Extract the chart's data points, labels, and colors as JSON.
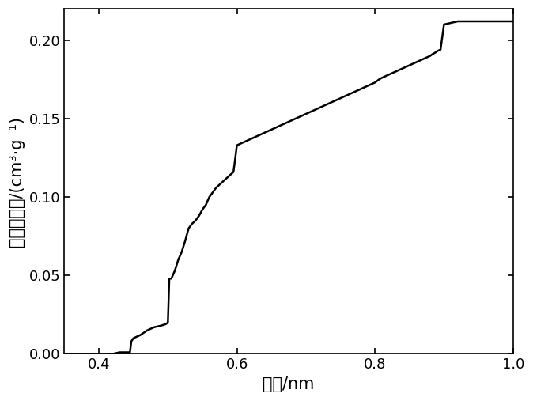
{
  "x": [
    0.35,
    0.4,
    0.41,
    0.42,
    0.43,
    0.44,
    0.445,
    0.447,
    0.45,
    0.46,
    0.47,
    0.48,
    0.49,
    0.497,
    0.5,
    0.502,
    0.505,
    0.51,
    0.515,
    0.52,
    0.525,
    0.53,
    0.535,
    0.54,
    0.545,
    0.55,
    0.555,
    0.56,
    0.565,
    0.57,
    0.575,
    0.58,
    0.585,
    0.59,
    0.595,
    0.6,
    0.605,
    0.61,
    0.615,
    0.62,
    0.625,
    0.63,
    0.635,
    0.64,
    0.645,
    0.65,
    0.655,
    0.66,
    0.665,
    0.67,
    0.675,
    0.68,
    0.685,
    0.69,
    0.695,
    0.7,
    0.705,
    0.71,
    0.715,
    0.72,
    0.725,
    0.73,
    0.735,
    0.74,
    0.745,
    0.75,
    0.755,
    0.76,
    0.765,
    0.77,
    0.775,
    0.78,
    0.785,
    0.79,
    0.795,
    0.8,
    0.803,
    0.806,
    0.81,
    0.815,
    0.82,
    0.825,
    0.83,
    0.835,
    0.84,
    0.845,
    0.85,
    0.855,
    0.86,
    0.865,
    0.87,
    0.875,
    0.88,
    0.883,
    0.887,
    0.89,
    0.895,
    0.9,
    0.92,
    1.0
  ],
  "y": [
    0.0,
    0.0,
    0.0,
    0.0,
    0.001,
    0.001,
    0.001,
    0.008,
    0.01,
    0.012,
    0.015,
    0.017,
    0.018,
    0.019,
    0.02,
    0.048,
    0.048,
    0.053,
    0.06,
    0.065,
    0.072,
    0.08,
    0.083,
    0.085,
    0.088,
    0.092,
    0.095,
    0.1,
    0.103,
    0.106,
    0.108,
    0.11,
    0.112,
    0.114,
    0.116,
    0.133,
    0.134,
    0.135,
    0.136,
    0.137,
    0.138,
    0.139,
    0.14,
    0.141,
    0.142,
    0.143,
    0.144,
    0.145,
    0.146,
    0.147,
    0.148,
    0.149,
    0.15,
    0.151,
    0.152,
    0.153,
    0.154,
    0.155,
    0.156,
    0.157,
    0.158,
    0.159,
    0.16,
    0.161,
    0.162,
    0.163,
    0.164,
    0.165,
    0.166,
    0.167,
    0.168,
    0.169,
    0.17,
    0.171,
    0.172,
    0.173,
    0.174,
    0.175,
    0.176,
    0.177,
    0.178,
    0.179,
    0.18,
    0.181,
    0.182,
    0.183,
    0.184,
    0.185,
    0.186,
    0.187,
    0.188,
    0.189,
    0.19,
    0.191,
    0.192,
    0.193,
    0.194,
    0.21,
    0.212,
    0.212
  ],
  "xlim": [
    0.35,
    1.0
  ],
  "ylim": [
    0.0,
    0.22
  ],
  "xticks": [
    0.4,
    0.6,
    0.8,
    1.0
  ],
  "yticks": [
    0.0,
    0.05,
    0.1,
    0.15,
    0.2
  ],
  "xlabel": "孔径/nm",
  "ylabel": "累积孔体积/(cm³·g⁻¹)",
  "line_color": "#000000",
  "line_width": 1.8,
  "background_color": "#ffffff",
  "tick_fontsize": 13,
  "label_fontsize": 15
}
